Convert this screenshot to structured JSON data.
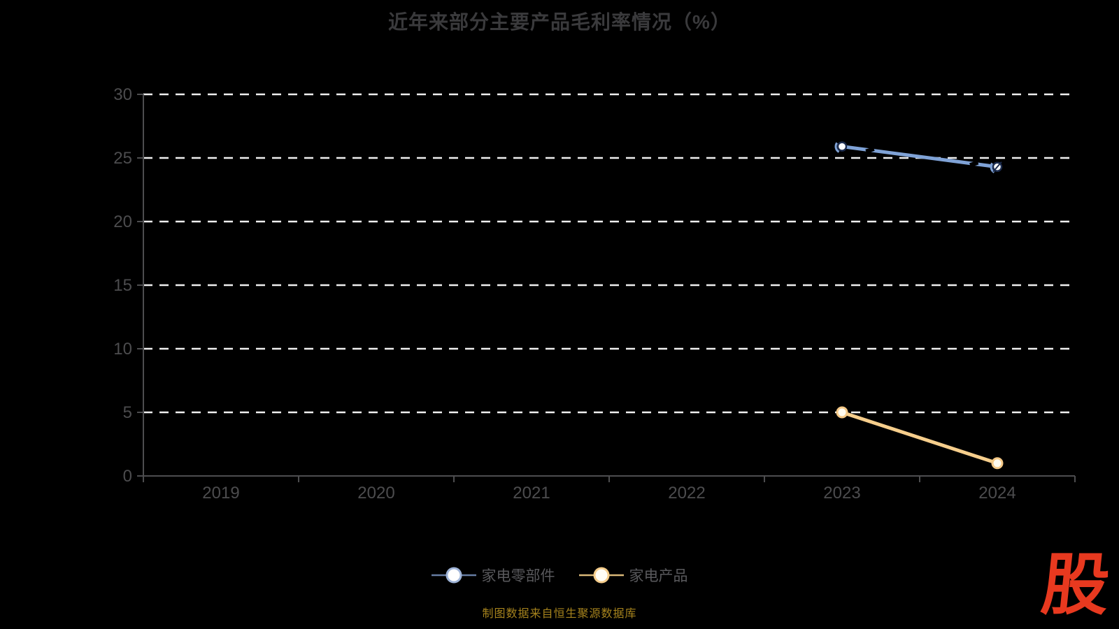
{
  "title": {
    "text": "近年来部分主要产品毛利率情况（%）",
    "color": "#3a3a3c"
  },
  "footer": {
    "source_text": "制图数据来自恒生聚源数据库",
    "color": "#a6831d"
  },
  "logo": {
    "text": "股",
    "color": "#e8391f"
  },
  "legend": {
    "position": "bottom-center",
    "items": [
      {
        "label": "家电零部件",
        "line_color": "#667ca3",
        "ring_color": "#9fb4d8",
        "fill": "#ffffff"
      },
      {
        "label": "家电产品",
        "line_color": "#d9b878",
        "ring_color": "#f6ce8c",
        "fill": "#fffdf6"
      }
    ]
  },
  "chart_data": {
    "type": "line",
    "title": "近年来部分主要产品毛利率情况（%）",
    "categories": [
      "2019",
      "2020",
      "2021",
      "2022",
      "2023",
      "2024"
    ],
    "series": [
      {
        "name": "家电零部件",
        "color": "#7fa2d6",
        "marker_fill": "#fdfdfd",
        "marker_stroke": "#1b2b4d",
        "values": [
          null,
          null,
          null,
          null,
          25.9,
          24.3
        ]
      },
      {
        "name": "家电产品",
        "color": "#f6ce8c",
        "marker_fill": "#fffbef",
        "marker_stroke": "#f5c987",
        "values": [
          null,
          null,
          null,
          null,
          5.0,
          1.0
        ]
      }
    ],
    "ylim": [
      0,
      30
    ],
    "yticks": [
      0,
      5,
      10,
      15,
      20,
      25,
      30
    ],
    "xlabel": "",
    "ylabel": "",
    "grid": "horizontal-dashed",
    "gridline_color": "#efefef",
    "axis_color": "#4d4d4f",
    "label_color": "#4c4c4e",
    "legend_position": "bottom-center",
    "background": "#000000"
  }
}
